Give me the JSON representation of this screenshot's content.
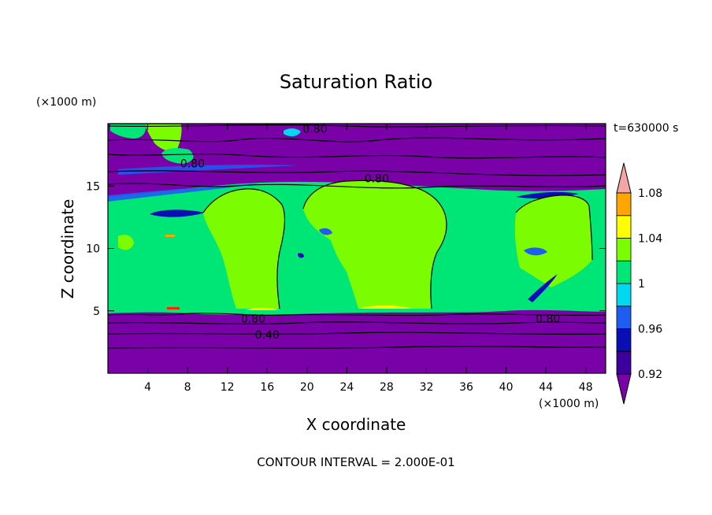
{
  "chart_data": {
    "type": "heatmap",
    "title": "Saturation Ratio",
    "xlabel": "X coordinate",
    "ylabel": "Z coordinate",
    "x_unit": "(×1000 m)",
    "y_unit": "(×1000 m)",
    "time_label": "t=630000 s",
    "footer": "CONTOUR INTERVAL = 2.000E-01",
    "xlim": [
      0,
      50
    ],
    "ylim": [
      0,
      20
    ],
    "x_ticks": [
      4,
      8,
      12,
      16,
      20,
      24,
      28,
      32,
      36,
      40,
      44,
      48
    ],
    "y_ticks": [
      5,
      10,
      15
    ],
    "colorbar": {
      "levels": [
        0.9,
        0.92,
        0.94,
        0.96,
        0.98,
        1.0,
        1.02,
        1.04,
        1.06,
        1.08,
        1.1
      ],
      "colors": [
        "#7a00a8",
        "#3d009e",
        "#0a0fb4",
        "#1f5cf2",
        "#00d8f0",
        "#00e676",
        "#7cfc00",
        "#ffff00",
        "#ffa500",
        "#ff2400",
        "#f4a6a6"
      ],
      "under_color": "#7a00a8",
      "over_color": "#f4a6a6",
      "tick_labels": [
        "0.92",
        "0.96",
        "1",
        "1.04",
        "1.08"
      ],
      "tick_values": [
        0.92,
        0.96,
        1.0,
        1.04,
        1.08
      ]
    },
    "contour_labels": [
      {
        "text": "0.80",
        "x": 20.8,
        "z": 19.6
      },
      {
        "text": "0.80",
        "x": 8.5,
        "z": 16.8
      },
      {
        "text": "0.80",
        "x": 27.0,
        "z": 15.6
      },
      {
        "text": "0.80",
        "x": 14.6,
        "z": 4.4
      },
      {
        "text": "0.80",
        "x": 44.2,
        "z": 4.4
      },
      {
        "text": "0.40",
        "x": 16.0,
        "z": 3.1
      }
    ]
  }
}
